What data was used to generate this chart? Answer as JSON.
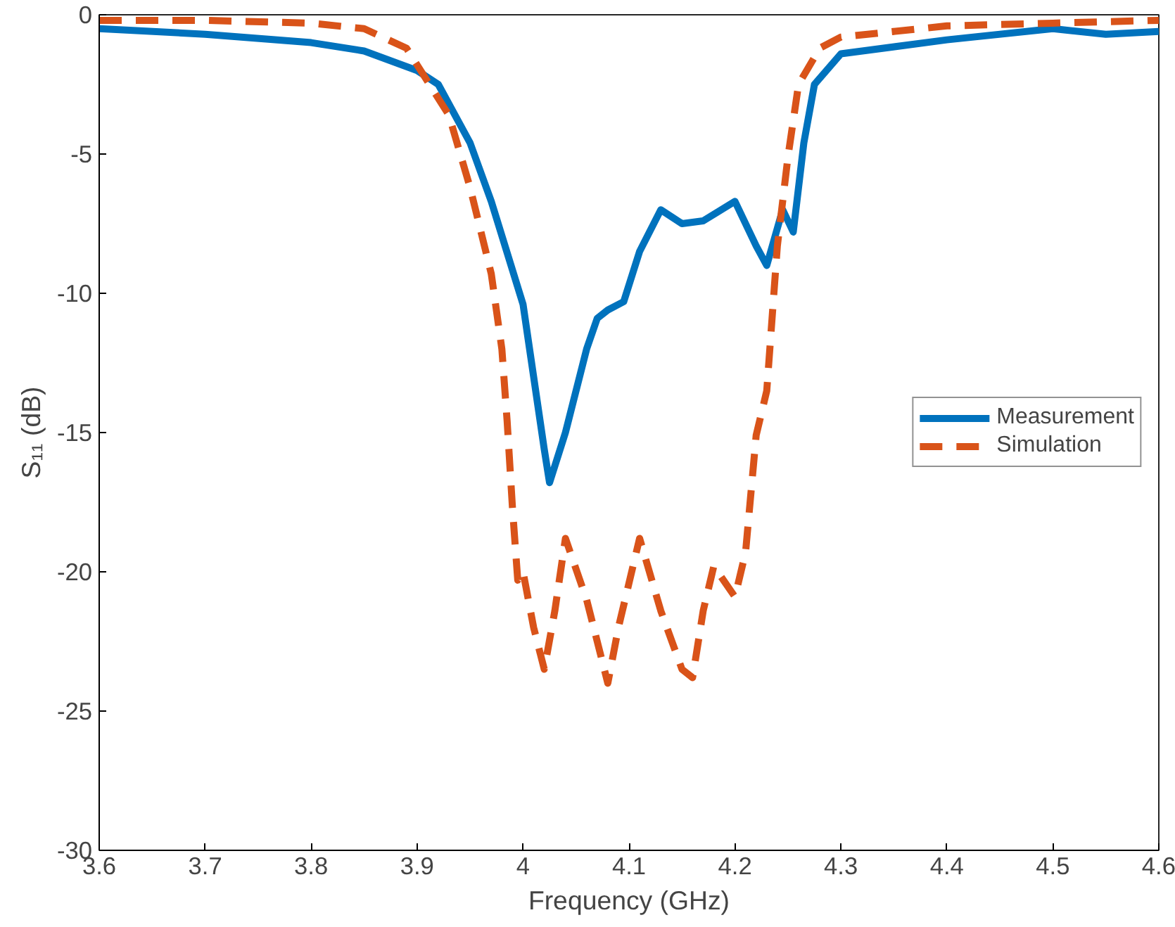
{
  "chart_data": {
    "type": "line",
    "xlabel": "Frequency (GHz)",
    "ylabel": "S₁₁ (dB)",
    "xlim": [
      3.6,
      4.6
    ],
    "ylim": [
      -30,
      0
    ],
    "xticks": [
      3.6,
      3.7,
      3.8,
      3.9,
      4,
      4.1,
      4.2,
      4.3,
      4.4,
      4.5,
      4.6
    ],
    "yticks": [
      -30,
      -25,
      -20,
      -15,
      -10,
      -5,
      0
    ],
    "grid": false,
    "legend": "right",
    "series": [
      {
        "name": "Measurement",
        "color": "#0072bd",
        "line_style": "solid",
        "x": [
          3.6,
          3.7,
          3.8,
          3.85,
          3.9,
          3.92,
          3.95,
          3.97,
          4.0,
          4.02,
          4.025,
          4.04,
          4.06,
          4.07,
          4.08,
          4.095,
          4.11,
          4.13,
          4.15,
          4.17,
          4.2,
          4.22,
          4.23,
          4.245,
          4.255,
          4.265,
          4.275,
          4.3,
          4.4,
          4.5,
          4.55,
          4.6
        ],
        "values": [
          -0.5,
          -0.7,
          -1.0,
          -1.3,
          -2.0,
          -2.5,
          -4.6,
          -6.7,
          -10.4,
          -15.6,
          -16.8,
          -15,
          -12,
          -10.9,
          -10.6,
          -10.3,
          -8.5,
          -7.0,
          -7.5,
          -7.4,
          -6.7,
          -8.3,
          -9.0,
          -7.0,
          -7.8,
          -4.6,
          -2.5,
          -1.4,
          -0.9,
          -0.5,
          -0.7,
          -0.6
        ]
      },
      {
        "name": "Simulation",
        "color": "#d95319",
        "line_style": "dashed",
        "x": [
          3.6,
          3.7,
          3.8,
          3.85,
          3.89,
          3.93,
          3.95,
          3.97,
          3.98,
          3.985,
          3.99,
          3.995,
          4.0,
          4.01,
          4.02,
          4.03,
          4.04,
          4.06,
          4.08,
          4.09,
          4.11,
          4.13,
          4.15,
          4.16,
          4.17,
          4.18,
          4.2,
          4.21,
          4.22,
          4.23,
          4.24,
          4.25,
          4.26,
          4.28,
          4.3,
          4.4,
          4.5,
          4.6
        ],
        "values": [
          -0.2,
          -0.2,
          -0.3,
          -0.5,
          -1.2,
          -3.6,
          -6.2,
          -9.3,
          -12,
          -14.6,
          -17.7,
          -20.3,
          -20,
          -22,
          -23.5,
          -21.4,
          -18.8,
          -21,
          -24,
          -22,
          -18.8,
          -21.4,
          -23.5,
          -23.8,
          -21.4,
          -19.8,
          -20.9,
          -19.3,
          -15.1,
          -13.5,
          -8.3,
          -5.1,
          -2.5,
          -1.2,
          -0.8,
          -0.4,
          -0.3,
          -0.2
        ]
      }
    ]
  }
}
